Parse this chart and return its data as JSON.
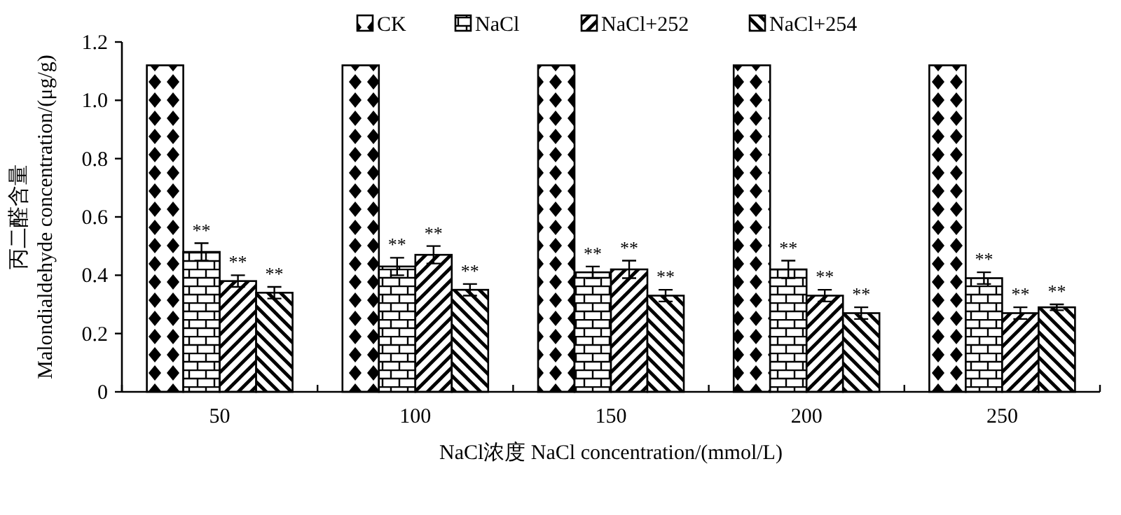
{
  "chart_data": {
    "type": "bar",
    "xlabel": "NaCl浓度 NaCl concentration/(mmol/L)",
    "ylabel": "丙二醛含量\nMalondialdehyde concentration/(μg/g)",
    "categories": [
      "50",
      "100",
      "150",
      "200",
      "250"
    ],
    "ylim": [
      0,
      1.2
    ],
    "yticks": [
      {
        "value": 0,
        "label": "0"
      },
      0.2,
      0.4,
      0.6,
      0.8,
      {
        "value": 1,
        "label": "1.0"
      },
      1.2
    ],
    "grid": false,
    "legend": "top",
    "series": [
      {
        "name": "CK",
        "color": "#000000",
        "values": [
          1.12,
          1.12,
          1.12,
          1.12,
          1.12
        ]
      },
      {
        "name": "NaCl",
        "color": "#000000",
        "values": [
          0.48,
          0.43,
          0.41,
          0.42,
          0.39
        ],
        "errors": [
          0.03,
          0.03,
          0.02,
          0.03,
          0.02
        ],
        "value_labels": [
          "**",
          "**",
          "**",
          "**",
          "**"
        ]
      },
      {
        "name": "NaCl+252",
        "color": "#000000",
        "values": [
          0.38,
          0.47,
          0.42,
          0.33,
          0.27
        ],
        "errors": [
          0.02,
          0.03,
          0.03,
          0.02,
          0.02
        ],
        "value_labels": [
          "**",
          "**",
          "**",
          "**",
          "**"
        ]
      },
      {
        "name": "NaCl+254",
        "color": "#000000",
        "values": [
          0.34,
          0.35,
          0.33,
          0.27,
          0.29
        ],
        "errors": [
          0.02,
          0.02,
          0.02,
          0.02,
          0.01
        ],
        "value_labels": [
          "**",
          "**",
          "**",
          "**",
          "**"
        ]
      }
    ]
  }
}
